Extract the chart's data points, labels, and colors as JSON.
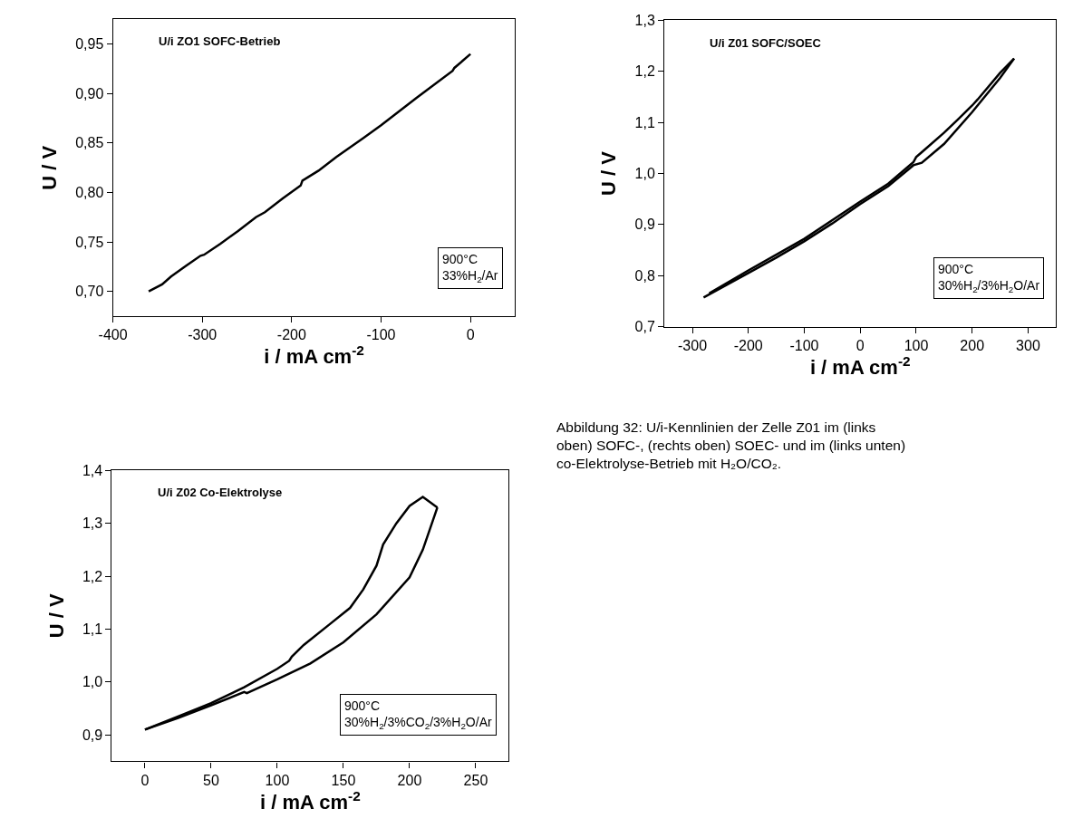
{
  "chart_data": [
    {
      "type": "line",
      "title": "U/i ZO1 SOFC-Betrieb",
      "xlabel": "i / mA cm$^{-2}$",
      "ylabel": "U / V",
      "x": [
        -360,
        -345,
        -335,
        -318,
        -302,
        -298,
        -280,
        -260,
        -240,
        -230,
        -210,
        -190,
        -188,
        -170,
        -150,
        -120,
        -100,
        -60,
        -20,
        -18,
        0
      ],
      "series": [
        {
          "color": "#000000",
          "values": [
            0.7,
            0.707,
            0.715,
            0.726,
            0.736,
            0.737,
            0.748,
            0.761,
            0.775,
            0.78,
            0.794,
            0.807,
            0.812,
            0.822,
            0.836,
            0.855,
            0.868,
            0.896,
            0.923,
            0.926,
            0.94
          ]
        }
      ],
      "xlim": [
        -400,
        50
      ],
      "xticks": [
        -400,
        -300,
        -200,
        -100,
        0
      ],
      "ylim": [
        0.675,
        0.975
      ],
      "yticks": [
        {
          "value": 0.7,
          "label": "0,70"
        },
        {
          "value": 0.75,
          "label": "0,75"
        },
        {
          "value": 0.8,
          "label": "0,80"
        },
        {
          "value": 0.85,
          "label": "0,85"
        },
        {
          "value": 0.9,
          "label": "0,90"
        },
        {
          "value": 0.95,
          "label": "0,95"
        }
      ],
      "annotations": [
        "900°C\n33%H$_{2}$/Ar"
      ],
      "marker": "none",
      "line_style": "solid"
    },
    {
      "type": "line",
      "title": "U/i Z01 SOFC/SOEC",
      "xlabel": "i / mA cm$^{-2}$",
      "ylabel": "U / V",
      "series": [
        {
          "color": "#000000",
          "x": [
            -280,
            -200,
            -150,
            -100,
            -50,
            0,
            50,
            95,
            110,
            150,
            200,
            250,
            275
          ],
          "values": [
            0.757,
            0.805,
            0.835,
            0.867,
            0.902,
            0.94,
            0.975,
            1.016,
            1.021,
            1.058,
            1.12,
            1.187,
            1.225
          ]
        },
        {
          "color": "#000000",
          "x": [
            -270,
            -200,
            -100,
            0,
            50,
            95,
            100,
            150,
            175,
            200,
            210,
            250,
            275
          ],
          "values": [
            0.765,
            0.81,
            0.872,
            0.945,
            0.98,
            1.022,
            1.032,
            1.08,
            1.106,
            1.133,
            1.145,
            1.197,
            1.225
          ]
        }
      ],
      "xlim": [
        -350,
        350
      ],
      "xticks": [
        -300,
        -200,
        -100,
        0,
        100,
        200,
        300
      ],
      "ylim": [
        0.7,
        1.3
      ],
      "yticks": [
        {
          "value": 0.7,
          "label": "0,7"
        },
        {
          "value": 0.8,
          "label": "0,8"
        },
        {
          "value": 0.9,
          "label": "0,9"
        },
        {
          "value": 1.0,
          "label": "1,0"
        },
        {
          "value": 1.1,
          "label": "1,1"
        },
        {
          "value": 1.2,
          "label": "1,2"
        },
        {
          "value": 1.3,
          "label": "1,3"
        }
      ],
      "annotations": [
        "900°C\n30%H$_{2}$/3%H$_{2}$O/Ar"
      ],
      "marker": "none",
      "line_style": "solid"
    },
    {
      "type": "line",
      "title": "U/i Z02 Co-Elektrolyse",
      "xlabel": "i / mA cm$^{-2}$",
      "ylabel": "U / V",
      "series": [
        {
          "color": "#000000",
          "x": [
            0,
            25,
            50,
            75,
            77,
            100,
            125,
            150,
            175,
            200,
            210,
            221
          ],
          "values": [
            0.91,
            0.932,
            0.956,
            0.981,
            0.979,
            1.005,
            1.035,
            1.075,
            1.128,
            1.198,
            1.25,
            1.33
          ]
        },
        {
          "color": "#000000",
          "x": [
            0,
            25,
            50,
            75,
            100,
            109,
            111,
            120,
            140,
            155,
            165,
            175,
            180,
            190,
            200,
            210,
            221
          ],
          "values": [
            0.91,
            0.935,
            0.96,
            0.99,
            1.025,
            1.04,
            1.048,
            1.07,
            1.11,
            1.14,
            1.175,
            1.22,
            1.26,
            1.3,
            1.333,
            1.35,
            1.33
          ]
        }
      ],
      "xlim": [
        -25,
        275
      ],
      "xticks": [
        0,
        50,
        100,
        150,
        200,
        250
      ],
      "ylim": [
        0.85,
        1.4
      ],
      "yticks": [
        {
          "value": 0.9,
          "label": "0,9"
        },
        {
          "value": 1.0,
          "label": "1,0"
        },
        {
          "value": 1.1,
          "label": "1,1"
        },
        {
          "value": 1.2,
          "label": "1,2"
        },
        {
          "value": 1.3,
          "label": "1,3"
        },
        {
          "value": 1.4,
          "label": "1,4"
        }
      ],
      "annotations": [
        "900°C\n30%H$_{2}$/3%CO$_{2}$/3%H$_{2}$O/Ar",
        "Abbildung 32: U/i-Kennlinien der Zelle Z01 im (links\noben) SOFC-, (rechts oben) SOEC- und im (links unten)\nco-Elektrolyse-Betrieb mit H₂O/CO₂."
      ],
      "marker": "none",
      "line_style": "solid"
    }
  ]
}
